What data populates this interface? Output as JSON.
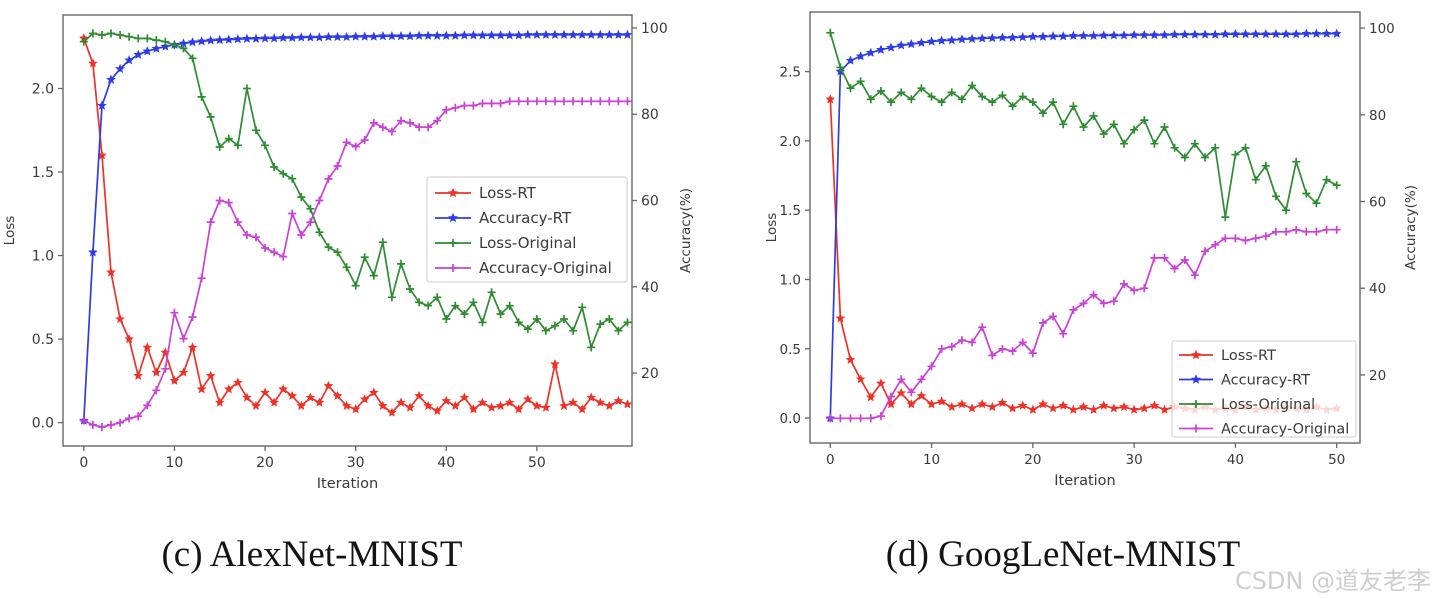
{
  "watermark": "CSDN @道友老李",
  "colors": {
    "loss_rt": "#ee3227",
    "accuracy_rt": "#2e3ce8",
    "loss_original": "#2e8b31",
    "accuracy_original": "#ca41d6",
    "frame": "#666666",
    "text": "#3a3a3a"
  },
  "chart_data": [
    {
      "type": "line",
      "title": "(c) AlexNet-MNIST",
      "xlabel": "Iteration",
      "ylabel_left": "Loss",
      "ylabel_right": "Accuracy(%)",
      "x_ticks": [
        0,
        10,
        20,
        30,
        40,
        50
      ],
      "y_ticks_left": [
        0.0,
        0.5,
        1.0,
        1.5,
        2.0
      ],
      "y_ticks_right": [
        20,
        40,
        60,
        80,
        100
      ],
      "xlim": [
        -2.3,
        60.5
      ],
      "ylim_left": [
        -0.14,
        2.44
      ],
      "ylim_right": [
        3.1,
        103
      ],
      "grid": false,
      "legend_position": "center-right",
      "series": [
        {
          "name": "Loss-RT",
          "axis": "left",
          "color": "#ee3227",
          "marker": "star",
          "values": [
            2.3,
            2.15,
            1.6,
            0.9,
            0.62,
            0.5,
            0.28,
            0.45,
            0.3,
            0.42,
            0.25,
            0.3,
            0.45,
            0.2,
            0.28,
            0.12,
            0.2,
            0.24,
            0.15,
            0.1,
            0.18,
            0.12,
            0.2,
            0.16,
            0.1,
            0.15,
            0.12,
            0.22,
            0.16,
            0.1,
            0.08,
            0.14,
            0.18,
            0.1,
            0.06,
            0.12,
            0.09,
            0.16,
            0.1,
            0.07,
            0.13,
            0.1,
            0.15,
            0.08,
            0.12,
            0.09,
            0.1,
            0.12,
            0.08,
            0.14,
            0.1,
            0.09,
            0.35,
            0.1,
            0.12,
            0.08,
            0.15,
            0.12,
            0.1,
            0.13,
            0.11
          ]
        },
        {
          "name": "Accuracy-RT",
          "axis": "right",
          "color": "#2e3ce8",
          "marker": "star",
          "values": [
            9,
            48,
            82,
            88,
            90.5,
            92.5,
            93.8,
            94.6,
            95.2,
            95.7,
            96.1,
            96.4,
            96.7,
            96.9,
            97.1,
            97.2,
            97.3,
            97.4,
            97.5,
            97.5,
            97.6,
            97.6,
            97.7,
            97.7,
            97.8,
            97.8,
            97.8,
            97.9,
            97.9,
            97.9,
            98,
            98,
            98,
            98.1,
            98.1,
            98.1,
            98.1,
            98.2,
            98.2,
            98.2,
            98.2,
            98.2,
            98.3,
            98.3,
            98.3,
            98.3,
            98.3,
            98.3,
            98.3,
            98.4,
            98.4,
            98.4,
            98.4,
            98.4,
            98.4,
            98.4,
            98.4,
            98.4,
            98.4,
            98.4,
            98.4
          ]
        },
        {
          "name": "Loss-Original",
          "axis": "left",
          "color": "#2e8b31",
          "marker": "plus",
          "values": [
            2.28,
            2.33,
            2.32,
            2.33,
            2.32,
            2.31,
            2.3,
            2.3,
            2.29,
            2.28,
            2.26,
            2.24,
            2.18,
            1.95,
            1.83,
            1.65,
            1.7,
            1.66,
            2.0,
            1.75,
            1.66,
            1.53,
            1.49,
            1.46,
            1.35,
            1.28,
            1.14,
            1.05,
            1.02,
            0.93,
            0.82,
            0.99,
            0.88,
            1.08,
            0.75,
            0.95,
            0.8,
            0.72,
            0.7,
            0.75,
            0.62,
            0.7,
            0.65,
            0.72,
            0.6,
            0.78,
            0.65,
            0.7,
            0.6,
            0.56,
            0.62,
            0.55,
            0.58,
            0.62,
            0.55,
            0.69,
            0.45,
            0.59,
            0.62,
            0.55,
            0.6
          ]
        },
        {
          "name": "Accuracy-Original",
          "axis": "right",
          "color": "#ca41d6",
          "marker": "plus",
          "values": [
            9,
            8,
            7.5,
            8,
            8.5,
            9.5,
            10,
            12.5,
            16,
            21,
            34,
            28,
            33,
            42,
            55,
            60,
            59.5,
            55,
            52,
            51.5,
            49,
            48,
            47,
            57,
            52,
            55,
            60,
            65,
            68,
            73.5,
            72.5,
            74,
            78,
            77,
            76,
            78.5,
            78,
            77,
            77,
            78.5,
            81,
            81.5,
            82,
            82,
            82.5,
            82.5,
            82.5,
            83,
            83,
            83,
            83,
            83,
            83,
            83,
            83,
            83,
            83,
            83,
            83,
            83,
            83
          ]
        }
      ]
    },
    {
      "type": "line",
      "title": "(d) GoogLeNet-MNIST",
      "xlabel": "Iteration",
      "ylabel_left": "Loss",
      "ylabel_right": "Accuracy(%)",
      "x_ticks": [
        0,
        10,
        20,
        30,
        40,
        50
      ],
      "y_ticks_left": [
        0.0,
        0.5,
        1.0,
        1.5,
        2.0,
        2.5
      ],
      "y_ticks_right": [
        20,
        40,
        60,
        80,
        100
      ],
      "xlim": [
        -2,
        52.3
      ],
      "ylim_left": [
        -0.18,
        2.93
      ],
      "ylim_right": [
        4.3,
        103.7
      ],
      "grid": false,
      "legend_position": "lower-right",
      "series": [
        {
          "name": "Loss-RT",
          "axis": "left",
          "color": "#ee3227",
          "marker": "star",
          "values": [
            2.3,
            0.72,
            0.42,
            0.28,
            0.15,
            0.25,
            0.1,
            0.18,
            0.1,
            0.16,
            0.1,
            0.12,
            0.08,
            0.1,
            0.07,
            0.1,
            0.08,
            0.11,
            0.07,
            0.09,
            0.06,
            0.1,
            0.07,
            0.09,
            0.06,
            0.08,
            0.06,
            0.09,
            0.07,
            0.08,
            0.06,
            0.07,
            0.09,
            0.06,
            0.08,
            0.07,
            0.06,
            0.08,
            0.06,
            0.07,
            0.06,
            0.08,
            0.06,
            0.07,
            0.06,
            0.08,
            0.07,
            0.06,
            0.08,
            0.06,
            0.07
          ]
        },
        {
          "name": "Accuracy-RT",
          "axis": "right",
          "color": "#2e3ce8",
          "marker": "star",
          "values": [
            10,
            90,
            92.5,
            93.5,
            94.3,
            95,
            95.5,
            96,
            96.3,
            96.6,
            96.9,
            97.1,
            97.2,
            97.4,
            97.5,
            97.6,
            97.7,
            97.8,
            97.8,
            97.9,
            98,
            98,
            98.1,
            98.1,
            98.2,
            98.2,
            98.2,
            98.3,
            98.3,
            98.3,
            98.4,
            98.4,
            98.4,
            98.4,
            98.5,
            98.5,
            98.5,
            98.5,
            98.5,
            98.6,
            98.6,
            98.6,
            98.6,
            98.6,
            98.6,
            98.6,
            98.6,
            98.7,
            98.7,
            98.7,
            98.7
          ]
        },
        {
          "name": "Loss-Original",
          "axis": "left",
          "color": "#2e8b31",
          "marker": "plus",
          "values": [
            2.78,
            2.53,
            2.38,
            2.43,
            2.3,
            2.36,
            2.28,
            2.35,
            2.3,
            2.38,
            2.32,
            2.28,
            2.35,
            2.3,
            2.4,
            2.32,
            2.28,
            2.33,
            2.25,
            2.32,
            2.28,
            2.2,
            2.28,
            2.12,
            2.25,
            2.1,
            2.18,
            2.05,
            2.12,
            1.98,
            2.08,
            2.15,
            1.98,
            2.1,
            1.95,
            1.88,
            1.98,
            1.88,
            1.95,
            1.45,
            1.9,
            1.95,
            1.72,
            1.82,
            1.6,
            1.5,
            1.85,
            1.62,
            1.55,
            1.72,
            1.68
          ]
        },
        {
          "name": "Accuracy-Original",
          "axis": "right",
          "color": "#ca41d6",
          "marker": "plus",
          "values": [
            10,
            10,
            10,
            10,
            10,
            10.5,
            15,
            19,
            16,
            19,
            22,
            26,
            26.5,
            28,
            27.5,
            31,
            24.5,
            26,
            25.5,
            27.5,
            25,
            32,
            33.5,
            29.5,
            35,
            36.5,
            38.5,
            36.5,
            37,
            41,
            39.5,
            40,
            47,
            47,
            44.5,
            46.5,
            43,
            48.5,
            50,
            51.5,
            51.5,
            51,
            51.5,
            52,
            53,
            53,
            53.5,
            53,
            53,
            53.5,
            53.5
          ]
        }
      ]
    }
  ]
}
